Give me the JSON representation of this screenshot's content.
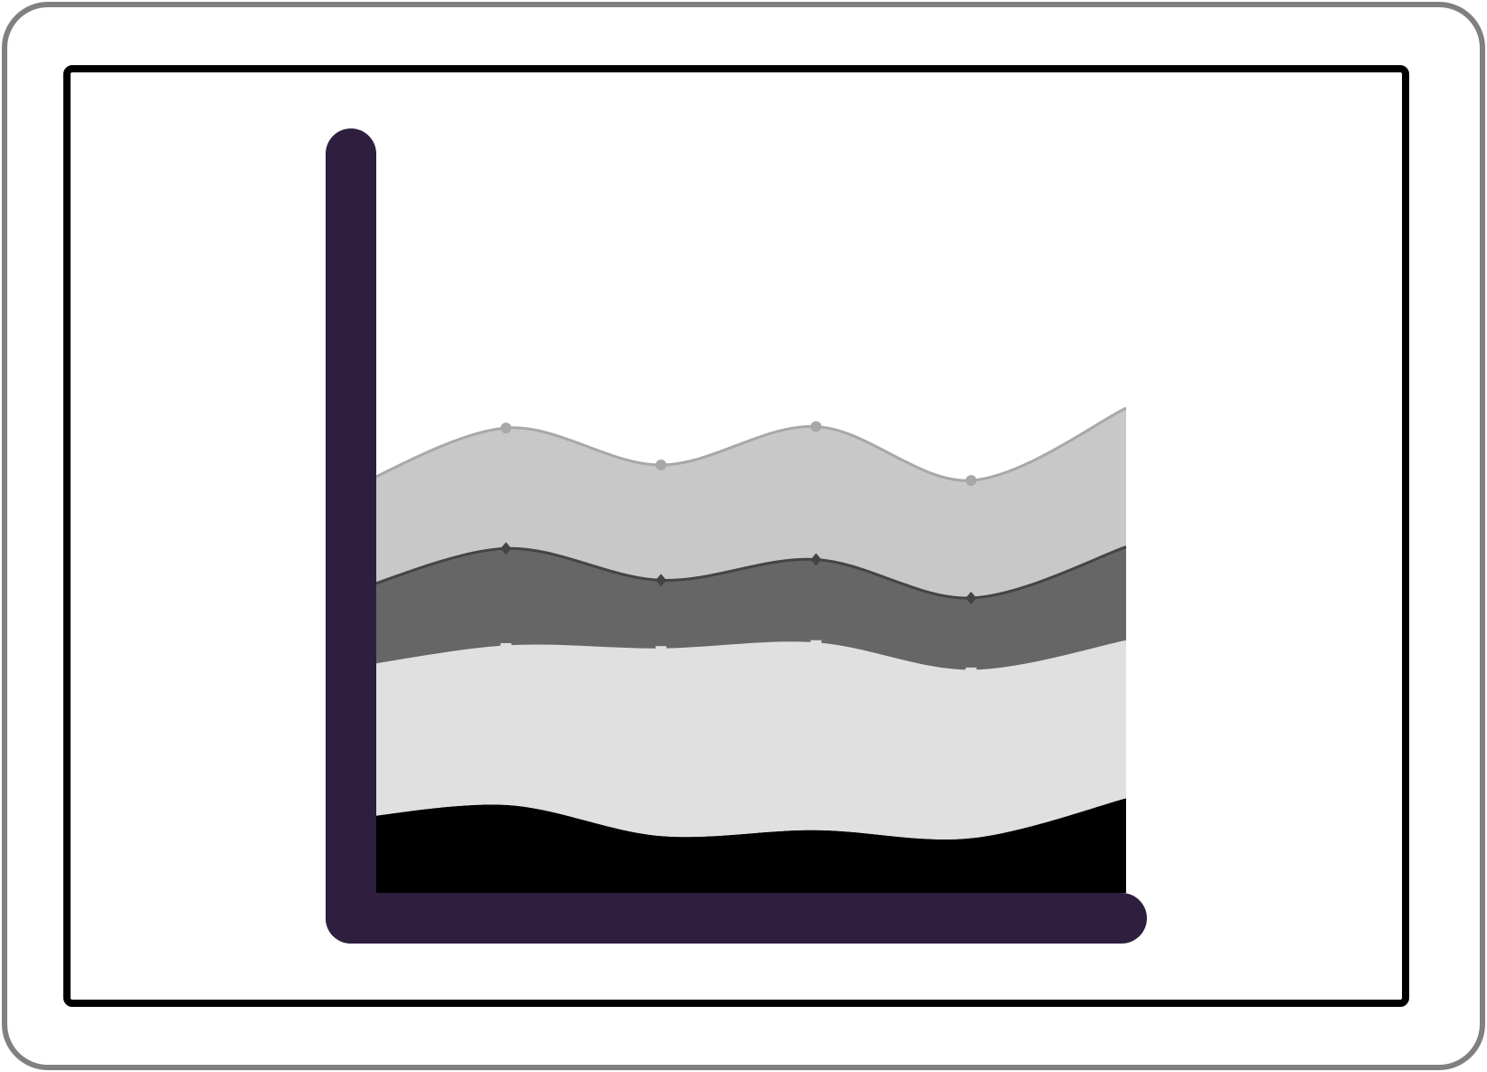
{
  "colors": {
    "outer_frame": "#808080",
    "inner_frame": "#000000",
    "axis": "#2e1f3e",
    "background": "#ffffff"
  },
  "chart_data": {
    "type": "area",
    "stacked": true,
    "smooth": true,
    "x": [
      0,
      1,
      2,
      3,
      4,
      5
    ],
    "ylim": [
      0,
      100
    ],
    "grid": false,
    "legend": "none",
    "series": [
      {
        "fill": "#000000",
        "line": "none",
        "marker": "none",
        "values": [
          10,
          11.9,
          7.7,
          8.5,
          7.4,
          12.8
        ]
      },
      {
        "fill": "#e0e0e0",
        "line": "#e0e0e0",
        "marker": "square",
        "values": [
          20.3,
          21.4,
          25.2,
          25.2,
          22.6,
          21.2
        ]
      },
      {
        "fill": "#666666",
        "line": "#444444",
        "marker": "diamond",
        "values": [
          10.4,
          13.3,
          9.4,
          11.4,
          9.9,
          12.8
        ]
      },
      {
        "fill": "#c8c8c8",
        "line": "#a8a8a8",
        "marker": "circle",
        "values": [
          14.0,
          16.3,
          15.6,
          18.0,
          15.9,
          18.8
        ]
      }
    ]
  }
}
